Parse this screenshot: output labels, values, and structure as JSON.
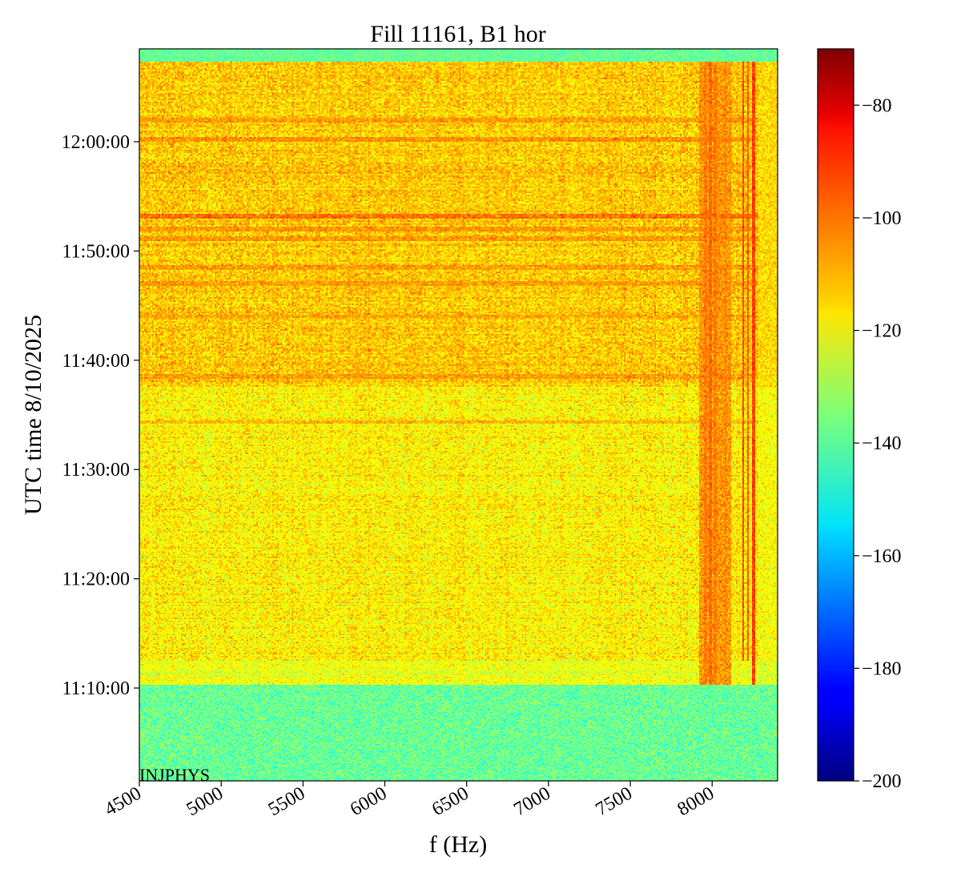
{
  "chart_data": {
    "type": "heatmap",
    "title": "Fill 11161, B1 hor",
    "xlabel": "f (Hz)",
    "ylabel": "UTC time 8/10/2025",
    "xlim": [
      4500,
      8400
    ],
    "ylim": [
      "11:01:30",
      "12:08:30"
    ],
    "x_ticks": [
      {
        "value": 4500,
        "label": "4500"
      },
      {
        "value": 5000,
        "label": "5000"
      },
      {
        "value": 5500,
        "label": "5500"
      },
      {
        "value": 6000,
        "label": "6000"
      },
      {
        "value": 6500,
        "label": "6500"
      },
      {
        "value": 7000,
        "label": "7000"
      },
      {
        "value": 7500,
        "label": "7500"
      },
      {
        "value": 8000,
        "label": "8000"
      }
    ],
    "y_ticks": [
      {
        "value": "11:10:00",
        "label": "11:10:00"
      },
      {
        "value": "11:20:00",
        "label": "11:20:00"
      },
      {
        "value": "11:30:00",
        "label": "11:30:00"
      },
      {
        "value": "11:40:00",
        "label": "11:40:00"
      },
      {
        "value": "11:50:00",
        "label": "11:50:00"
      },
      {
        "value": "12:00:00",
        "label": "12:00:00"
      }
    ],
    "colorbar": {
      "colormap": "jet",
      "range": [
        -200,
        -70
      ],
      "ticks": [
        {
          "value": -80,
          "label": "−80"
        },
        {
          "value": -100,
          "label": "−100"
        },
        {
          "value": -120,
          "label": "−120"
        },
        {
          "value": -140,
          "label": "−140"
        },
        {
          "value": -160,
          "label": "−160"
        },
        {
          "value": -180,
          "label": "−180"
        },
        {
          "value": -200,
          "label": "−200"
        }
      ]
    },
    "regions": [
      {
        "t_start": "11:01:30",
        "t_end": "11:10:20",
        "level": -138,
        "noise": 5
      },
      {
        "t_start": "11:10:20",
        "t_end": "11:12:30",
        "level": -121,
        "noise": 4
      },
      {
        "t_start": "11:12:30",
        "t_end": "11:37:30",
        "level": -117,
        "noise": 5
      },
      {
        "t_start": "11:37:30",
        "t_end": "12:07:20",
        "level": -112,
        "noise": 5
      },
      {
        "t_start": "12:07:20",
        "t_end": "12:08:30",
        "level": -138,
        "noise": 3
      }
    ],
    "horizontal_bands": [
      {
        "time": "12:00:10",
        "level": -105
      },
      {
        "time": "12:02:00",
        "level": -107
      },
      {
        "time": "11:53:10",
        "level": -101
      },
      {
        "time": "11:52:00",
        "level": -106
      },
      {
        "time": "11:51:10",
        "level": -106
      },
      {
        "time": "11:48:30",
        "level": -107
      },
      {
        "time": "11:47:00",
        "level": -107
      },
      {
        "time": "11:44:00",
        "level": -108
      },
      {
        "time": "11:38:30",
        "level": -107
      },
      {
        "time": "11:34:20",
        "level": -110
      }
    ],
    "vertical_lines": [
      {
        "f": 7960,
        "level": -103,
        "t_start": "11:10:20",
        "t_end": "12:07:20"
      },
      {
        "f": 7990,
        "level": -100,
        "t_start": "11:10:20",
        "t_end": "12:07:20"
      },
      {
        "f": 8020,
        "level": -103,
        "t_start": "11:10:20",
        "t_end": "12:07:20"
      },
      {
        "f": 8080,
        "level": -104,
        "t_start": "11:10:20",
        "t_end": "12:07:20"
      },
      {
        "f": 8190,
        "level": -95,
        "t_start": "11:12:30",
        "t_end": "12:07:20"
      },
      {
        "f": 8220,
        "level": -98,
        "t_start": "11:12:30",
        "t_end": "12:07:20"
      },
      {
        "f": 8255,
        "level": -94,
        "t_start": "11:10:20",
        "t_end": "12:07:20"
      }
    ],
    "annotation": "INJPHYS"
  }
}
